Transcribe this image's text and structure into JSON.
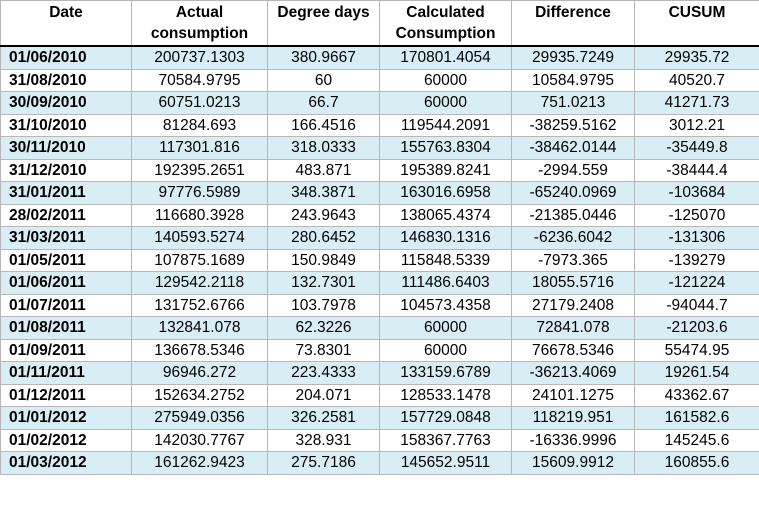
{
  "headers": {
    "date": "Date",
    "actual": "Actual consumption",
    "degree_days": "Degree days",
    "calculated": "Calculated Consumption",
    "difference": "Difference",
    "cusum": "CUSUM"
  },
  "colors": {
    "shaded_row": "#d9eef4",
    "plain_row": "#ffffff",
    "grid_line": "#b7b7b7"
  },
  "rows": [
    {
      "date": "01/06/2010",
      "actual": "200737.1303",
      "degree_days": "380.9667",
      "calculated": "170801.4054",
      "difference": "29935.7249",
      "cusum": "29935.72"
    },
    {
      "date": "31/08/2010",
      "actual": "70584.9795",
      "degree_days": "60",
      "calculated": "60000",
      "difference": "10584.9795",
      "cusum": "40520.7"
    },
    {
      "date": "30/09/2010",
      "actual": "60751.0213",
      "degree_days": "66.7",
      "calculated": "60000",
      "difference": "751.0213",
      "cusum": "41271.73"
    },
    {
      "date": "31/10/2010",
      "actual": "81284.693",
      "degree_days": "166.4516",
      "calculated": "119544.2091",
      "difference": "-38259.5162",
      "cusum": "3012.21"
    },
    {
      "date": "30/11/2010",
      "actual": "117301.816",
      "degree_days": "318.0333",
      "calculated": "155763.8304",
      "difference": "-38462.0144",
      "cusum": "-35449.8"
    },
    {
      "date": "31/12/2010",
      "actual": "192395.2651",
      "degree_days": "483.871",
      "calculated": "195389.8241",
      "difference": "-2994.559",
      "cusum": "-38444.4"
    },
    {
      "date": "31/01/2011",
      "actual": "97776.5989",
      "degree_days": "348.3871",
      "calculated": "163016.6958",
      "difference": "-65240.0969",
      "cusum": "-103684"
    },
    {
      "date": "28/02/2011",
      "actual": "116680.3928",
      "degree_days": "243.9643",
      "calculated": "138065.4374",
      "difference": "-21385.0446",
      "cusum": "-125070"
    },
    {
      "date": "31/03/2011",
      "actual": "140593.5274",
      "degree_days": "280.6452",
      "calculated": "146830.1316",
      "difference": "-6236.6042",
      "cusum": "-131306"
    },
    {
      "date": "01/05/2011",
      "actual": "107875.1689",
      "degree_days": "150.9849",
      "calculated": "115848.5339",
      "difference": "-7973.365",
      "cusum": "-139279"
    },
    {
      "date": "01/06/2011",
      "actual": "129542.2118",
      "degree_days": "132.7301",
      "calculated": "111486.6403",
      "difference": "18055.5716",
      "cusum": "-121224"
    },
    {
      "date": "01/07/2011",
      "actual": "131752.6766",
      "degree_days": "103.7978",
      "calculated": "104573.4358",
      "difference": "27179.2408",
      "cusum": "-94044.7"
    },
    {
      "date": "01/08/2011",
      "actual": "132841.078",
      "degree_days": "62.3226",
      "calculated": "60000",
      "difference": "72841.078",
      "cusum": "-21203.6"
    },
    {
      "date": "01/09/2011",
      "actual": "136678.5346",
      "degree_days": "73.8301",
      "calculated": "60000",
      "difference": "76678.5346",
      "cusum": "55474.95"
    },
    {
      "date": "01/11/2011",
      "actual": "96946.272",
      "degree_days": "223.4333",
      "calculated": "133159.6789",
      "difference": "-36213.4069",
      "cusum": "19261.54"
    },
    {
      "date": "01/12/2011",
      "actual": "152634.2752",
      "degree_days": "204.071",
      "calculated": "128533.1478",
      "difference": "24101.1275",
      "cusum": "43362.67"
    },
    {
      "date": "01/01/2012",
      "actual": "275949.0356",
      "degree_days": "326.2581",
      "calculated": "157729.0848",
      "difference": "118219.951",
      "cusum": "161582.6"
    },
    {
      "date": "01/02/2012",
      "actual": "142030.7767",
      "degree_days": "328.931",
      "calculated": "158367.7763",
      "difference": "-16336.9996",
      "cusum": "145245.6"
    },
    {
      "date": "01/03/2012",
      "actual": "161262.9423",
      "degree_days": "275.7186",
      "calculated": "145652.9511",
      "difference": "15609.9912",
      "cusum": "160855.6"
    }
  ]
}
